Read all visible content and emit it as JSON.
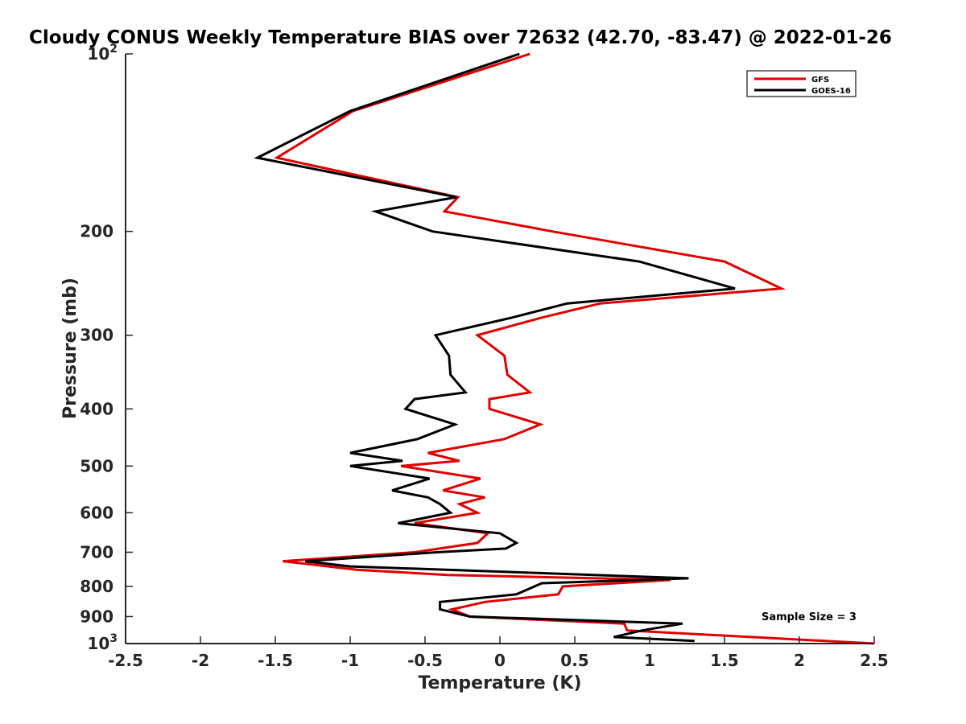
{
  "chart_data": {
    "type": "line",
    "title": "Cloudy CONUS Weekly Temperature BIAS over 72632 (42.70, -83.47) @ 2022-01-26",
    "xlabel": "Temperature (K)",
    "ylabel": "Pressure (mb)",
    "xlim": [
      -2.5,
      2.5
    ],
    "ylim": [
      100,
      1000
    ],
    "y_scale": "log",
    "y_reversed": true,
    "grid": false,
    "legend_position": "top-right",
    "x_ticks": [
      {
        "value": -2.5,
        "label": "-2.5"
      },
      {
        "value": -2,
        "label": "-2"
      },
      {
        "value": -1.5,
        "label": "-1.5"
      },
      {
        "value": -1,
        "label": "-1"
      },
      {
        "value": -0.5,
        "label": "-0.5"
      },
      {
        "value": 0,
        "label": "0"
      },
      {
        "value": 0.5,
        "label": "0.5"
      },
      {
        "value": 1,
        "label": "1"
      },
      {
        "value": 1.5,
        "label": "1.5"
      },
      {
        "value": 2,
        "label": "2"
      },
      {
        "value": 2.5,
        "label": "2.5"
      }
    ],
    "y_ticks": [
      {
        "value": 100,
        "base": "10",
        "exp": "2"
      },
      {
        "value": 200,
        "label": "200"
      },
      {
        "value": 300,
        "label": "300"
      },
      {
        "value": 400,
        "label": "400"
      },
      {
        "value": 500,
        "label": "500"
      },
      {
        "value": 600,
        "label": "600"
      },
      {
        "value": 700,
        "label": "700"
      },
      {
        "value": 800,
        "label": "800"
      },
      {
        "value": 900,
        "label": "900"
      },
      {
        "value": 1000,
        "base": "10",
        "exp": "3"
      }
    ],
    "annotation": "Sample Size = 3",
    "series": [
      {
        "name": "GFS",
        "color": "#e00000",
        "points": [
          {
            "x": 0.2,
            "y": 100
          },
          {
            "x": -0.98,
            "y": 125
          },
          {
            "x": -1.49,
            "y": 150
          },
          {
            "x": -0.28,
            "y": 175
          },
          {
            "x": -0.37,
            "y": 185
          },
          {
            "x": 0.35,
            "y": 200
          },
          {
            "x": 1.5,
            "y": 225
          },
          {
            "x": 1.88,
            "y": 250
          },
          {
            "x": 0.67,
            "y": 265
          },
          {
            "x": 0.28,
            "y": 280
          },
          {
            "x": -0.15,
            "y": 300
          },
          {
            "x": 0.03,
            "y": 325
          },
          {
            "x": 0.05,
            "y": 350
          },
          {
            "x": 0.2,
            "y": 375
          },
          {
            "x": -0.07,
            "y": 385
          },
          {
            "x": -0.07,
            "y": 400
          },
          {
            "x": 0.27,
            "y": 425
          },
          {
            "x": 0.03,
            "y": 450
          },
          {
            "x": -0.48,
            "y": 475
          },
          {
            "x": -0.27,
            "y": 490
          },
          {
            "x": -0.66,
            "y": 500
          },
          {
            "x": -0.13,
            "y": 525
          },
          {
            "x": -0.38,
            "y": 550
          },
          {
            "x": -0.1,
            "y": 565
          },
          {
            "x": -0.27,
            "y": 580
          },
          {
            "x": -0.15,
            "y": 600
          },
          {
            "x": -0.57,
            "y": 625
          },
          {
            "x": -0.08,
            "y": 650
          },
          {
            "x": -0.15,
            "y": 675
          },
          {
            "x": -0.57,
            "y": 700
          },
          {
            "x": -1.45,
            "y": 725
          },
          {
            "x": -0.95,
            "y": 750
          },
          {
            "x": -0.35,
            "y": 765
          },
          {
            "x": 1.14,
            "y": 780
          },
          {
            "x": 0.42,
            "y": 800
          },
          {
            "x": 0.39,
            "y": 825
          },
          {
            "x": -0.1,
            "y": 850
          },
          {
            "x": -0.32,
            "y": 875
          },
          {
            "x": -0.2,
            "y": 900
          },
          {
            "x": 0.83,
            "y": 925
          },
          {
            "x": 0.85,
            "y": 950
          },
          {
            "x": 2.5,
            "y": 1000
          }
        ]
      },
      {
        "name": "GOES-16",
        "color": "#000000",
        "points": [
          {
            "x": 0.13,
            "y": 100
          },
          {
            "x": -1.0,
            "y": 125
          },
          {
            "x": -1.62,
            "y": 150
          },
          {
            "x": -0.29,
            "y": 175
          },
          {
            "x": -0.83,
            "y": 185
          },
          {
            "x": -0.45,
            "y": 200
          },
          {
            "x": 0.93,
            "y": 225
          },
          {
            "x": 1.57,
            "y": 250
          },
          {
            "x": 0.45,
            "y": 265
          },
          {
            "x": 0.08,
            "y": 280
          },
          {
            "x": -0.43,
            "y": 300
          },
          {
            "x": -0.34,
            "y": 325
          },
          {
            "x": -0.33,
            "y": 350
          },
          {
            "x": -0.23,
            "y": 375
          },
          {
            "x": -0.57,
            "y": 385
          },
          {
            "x": -0.63,
            "y": 400
          },
          {
            "x": -0.3,
            "y": 425
          },
          {
            "x": -0.55,
            "y": 450
          },
          {
            "x": -1.0,
            "y": 475
          },
          {
            "x": -0.65,
            "y": 490
          },
          {
            "x": -1.0,
            "y": 500
          },
          {
            "x": -0.47,
            "y": 525
          },
          {
            "x": -0.72,
            "y": 550
          },
          {
            "x": -0.48,
            "y": 565
          },
          {
            "x": -0.4,
            "y": 580
          },
          {
            "x": -0.33,
            "y": 600
          },
          {
            "x": -0.68,
            "y": 625
          },
          {
            "x": 0.0,
            "y": 650
          },
          {
            "x": 0.11,
            "y": 675
          },
          {
            "x": 0.04,
            "y": 690
          },
          {
            "x": -0.42,
            "y": 700
          },
          {
            "x": -1.3,
            "y": 725
          },
          {
            "x": -1.0,
            "y": 740
          },
          {
            "x": 1.26,
            "y": 775
          },
          {
            "x": 0.28,
            "y": 790
          },
          {
            "x": 0.11,
            "y": 825
          },
          {
            "x": -0.4,
            "y": 850
          },
          {
            "x": -0.4,
            "y": 875
          },
          {
            "x": -0.2,
            "y": 900
          },
          {
            "x": 1.22,
            "y": 925
          },
          {
            "x": 0.95,
            "y": 950
          },
          {
            "x": 0.76,
            "y": 975
          },
          {
            "x": 1.3,
            "y": 990
          }
        ]
      }
    ]
  }
}
